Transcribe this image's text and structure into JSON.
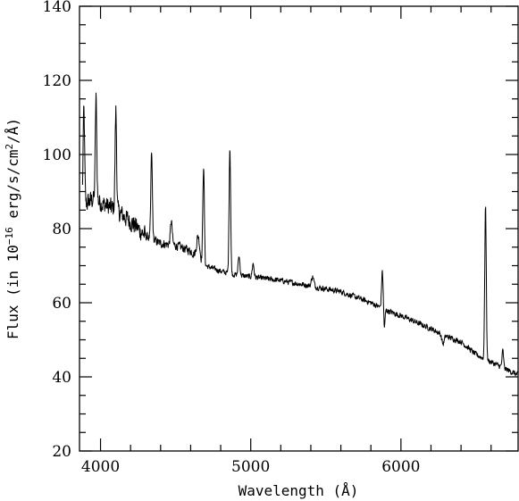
{
  "chart_data": {
    "type": "line",
    "title": "",
    "xlabel": "Wavelength (Å)",
    "ylabel_parts": {
      "before_exp": "Flux (in 10",
      "exp": "−16",
      "middle": " erg/s/cm",
      "exp2": "2",
      "after": "/Å)"
    },
    "xlim": [
      3860,
      6780
    ],
    "ylim": [
      20,
      140
    ],
    "xticks": [
      4000,
      5000,
      6000
    ],
    "xtick_labels": [
      "4000",
      "5000",
      "6000"
    ],
    "yticks": [
      20,
      40,
      60,
      80,
      100,
      120,
      140
    ],
    "ytick_labels": [
      "20",
      "40",
      "60",
      "80",
      "100",
      "120",
      "140"
    ],
    "grid": false,
    "series": [
      {
        "continuum": [
          [
            3880,
            86
          ],
          [
            3950,
            88
          ],
          [
            4000,
            87
          ],
          [
            4100,
            85
          ],
          [
            4200,
            82
          ],
          [
            4300,
            78
          ],
          [
            4400,
            76
          ],
          [
            4500,
            75.5
          ],
          [
            4600,
            74
          ],
          [
            4700,
            70
          ],
          [
            4800,
            68.5
          ],
          [
            4900,
            67.5
          ],
          [
            5000,
            67
          ],
          [
            5200,
            66
          ],
          [
            5400,
            64.5
          ],
          [
            5600,
            63
          ],
          [
            5800,
            60
          ],
          [
            5900,
            58
          ],
          [
            6000,
            56.5
          ],
          [
            6200,
            53
          ],
          [
            6300,
            51
          ],
          [
            6400,
            49.5
          ],
          [
            6500,
            46
          ],
          [
            6600,
            44
          ],
          [
            6780,
            40.5
          ]
        ],
        "lines": [
          {
            "x": 3889,
            "peak": 112,
            "width": 5
          },
          {
            "x": 3970,
            "peak": 115,
            "width": 5
          },
          {
            "x": 4102,
            "peak": 112,
            "width": 5
          },
          {
            "x": 4340,
            "peak": 100.5,
            "width": 5
          },
          {
            "x": 4471,
            "peak": 82,
            "width": 6
          },
          {
            "x": 4650,
            "peak": 78,
            "width": 10
          },
          {
            "x": 4686,
            "peak": 97,
            "width": 5
          },
          {
            "x": 4861,
            "peak": 102,
            "width": 5
          },
          {
            "x": 4922,
            "peak": 72.5,
            "width": 6
          },
          {
            "x": 5016,
            "peak": 70.5,
            "width": 6
          },
          {
            "x": 5412,
            "peak": 67,
            "width": 8
          },
          {
            "x": 5876,
            "peak": 68.5,
            "width": 5
          },
          {
            "x": 6563,
            "peak": 86,
            "width": 5
          },
          {
            "x": 6678,
            "peak": 47,
            "width": 5
          }
        ],
        "absorptions": [
          {
            "x": 5890,
            "depth": 5,
            "width": 4
          },
          {
            "x": 6280,
            "depth": 2.5,
            "width": 8
          }
        ],
        "noise": {
          "amplitude_blue": 3.5,
          "amplitude_red": 1.0,
          "blue_edge": 4300
        }
      }
    ]
  }
}
